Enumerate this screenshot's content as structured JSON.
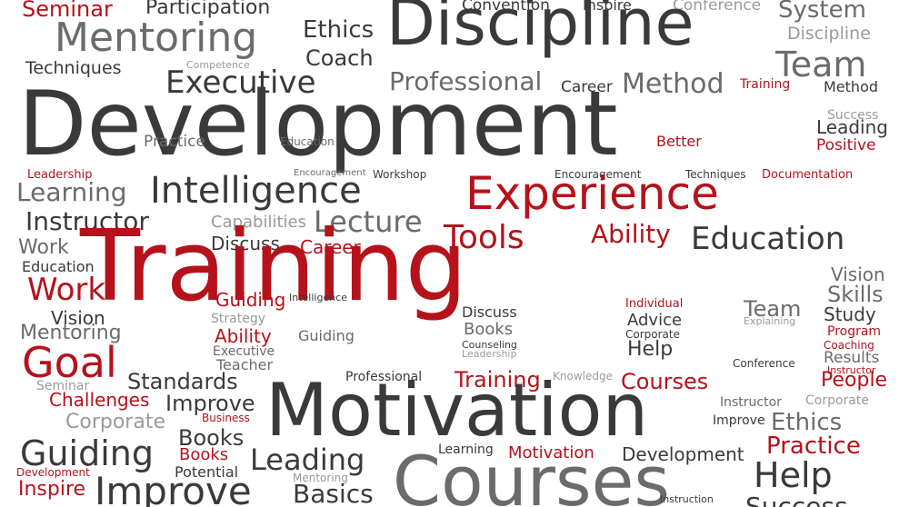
{
  "colors": {
    "red": "#b5121b",
    "dark": "#3a3a3a",
    "mid": "#6b6b6b",
    "light": "#9a9a9a"
  },
  "words": [
    {
      "text": "Seminar",
      "color": "red"
    },
    {
      "text": "Participation",
      "color": "dark"
    },
    {
      "text": "Convention",
      "color": "dark"
    },
    {
      "text": "Inspire",
      "color": "dark"
    },
    {
      "text": "Conference",
      "color": "light"
    },
    {
      "text": "System",
      "color": "mid"
    },
    {
      "text": "Discipline",
      "color": "dark"
    },
    {
      "text": "Mentoring",
      "color": "mid"
    },
    {
      "text": "Ethics",
      "color": "dark"
    },
    {
      "text": "Coach",
      "color": "dark"
    },
    {
      "text": "Discipline",
      "color": "light"
    },
    {
      "text": "Team",
      "color": "mid"
    },
    {
      "text": "Techniques",
      "color": "dark"
    },
    {
      "text": "Competence",
      "color": "light"
    },
    {
      "text": "Executive",
      "color": "dark"
    },
    {
      "text": "Professional",
      "color": "mid"
    },
    {
      "text": "Career",
      "color": "dark"
    },
    {
      "text": "Method",
      "color": "mid"
    },
    {
      "text": "Training",
      "color": "red"
    },
    {
      "text": "Method",
      "color": "dark"
    },
    {
      "text": "Development",
      "color": "dark"
    },
    {
      "text": "Success",
      "color": "light"
    },
    {
      "text": "Leading",
      "color": "dark"
    },
    {
      "text": "Practice",
      "color": "mid"
    },
    {
      "text": "Education",
      "color": "mid"
    },
    {
      "text": "Better",
      "color": "red"
    },
    {
      "text": "Positive",
      "color": "red"
    },
    {
      "text": "Leadership",
      "color": "red"
    },
    {
      "text": "Encouragement",
      "color": "mid"
    },
    {
      "text": "Workshop",
      "color": "dark"
    },
    {
      "text": "Encouragement",
      "color": "dark"
    },
    {
      "text": "Techniques",
      "color": "dark"
    },
    {
      "text": "Documentation",
      "color": "red"
    },
    {
      "text": "Learning",
      "color": "mid"
    },
    {
      "text": "Intelligence",
      "color": "dark"
    },
    {
      "text": "Experience",
      "color": "red"
    },
    {
      "text": "Instructor",
      "color": "dark"
    },
    {
      "text": "Capabilities",
      "color": "light"
    },
    {
      "text": "Lecture",
      "color": "mid"
    },
    {
      "text": "Tools",
      "color": "red"
    },
    {
      "text": "Ability",
      "color": "red"
    },
    {
      "text": "Education",
      "color": "dark"
    },
    {
      "text": "Work",
      "color": "mid"
    },
    {
      "text": "Discuss",
      "color": "dark"
    },
    {
      "text": "Career",
      "color": "red"
    },
    {
      "text": "Education",
      "color": "dark"
    },
    {
      "text": "Training",
      "color": "red"
    },
    {
      "text": "Vision",
      "color": "mid"
    },
    {
      "text": "Work",
      "color": "red"
    },
    {
      "text": "Skills",
      "color": "mid"
    },
    {
      "text": "Guiding",
      "color": "red"
    },
    {
      "text": "Intelligence",
      "color": "dark"
    },
    {
      "text": "Individual",
      "color": "red"
    },
    {
      "text": "Team",
      "color": "mid"
    },
    {
      "text": "Study",
      "color": "dark"
    },
    {
      "text": "Vision",
      "color": "dark"
    },
    {
      "text": "Strategy",
      "color": "light"
    },
    {
      "text": "Discuss",
      "color": "dark"
    },
    {
      "text": "Advice",
      "color": "dark"
    },
    {
      "text": "Explaining",
      "color": "light"
    },
    {
      "text": "Program",
      "color": "red"
    },
    {
      "text": "Mentoring",
      "color": "mid"
    },
    {
      "text": "Ability",
      "color": "red"
    },
    {
      "text": "Guiding",
      "color": "mid"
    },
    {
      "text": "Books",
      "color": "mid"
    },
    {
      "text": "Corporate",
      "color": "dark"
    },
    {
      "text": "Coaching",
      "color": "red"
    },
    {
      "text": "Goal",
      "color": "red"
    },
    {
      "text": "Executive",
      "color": "mid"
    },
    {
      "text": "Counseling",
      "color": "dark"
    },
    {
      "text": "Help",
      "color": "dark"
    },
    {
      "text": "Results",
      "color": "mid"
    },
    {
      "text": "Teacher",
      "color": "mid"
    },
    {
      "text": "Leadership",
      "color": "light"
    },
    {
      "text": "Conference",
      "color": "dark"
    },
    {
      "text": "Instructor",
      "color": "red"
    },
    {
      "text": "Standards",
      "color": "dark"
    },
    {
      "text": "Professional",
      "color": "dark"
    },
    {
      "text": "Knowledge",
      "color": "light"
    },
    {
      "text": "Seminar",
      "color": "light"
    },
    {
      "text": "Training",
      "color": "red"
    },
    {
      "text": "Courses",
      "color": "red"
    },
    {
      "text": "People",
      "color": "red"
    },
    {
      "text": "Challenges",
      "color": "red"
    },
    {
      "text": "Improve",
      "color": "dark"
    },
    {
      "text": "Motivation",
      "color": "dark"
    },
    {
      "text": "Instructor",
      "color": "mid"
    },
    {
      "text": "Corporate",
      "color": "light"
    },
    {
      "text": "Corporate",
      "color": "light"
    },
    {
      "text": "Business",
      "color": "red"
    },
    {
      "text": "Improve",
      "color": "dark"
    },
    {
      "text": "Ethics",
      "color": "mid"
    },
    {
      "text": "Books",
      "color": "dark"
    },
    {
      "text": "Guiding",
      "color": "dark"
    },
    {
      "text": "Practice",
      "color": "red"
    },
    {
      "text": "Books",
      "color": "red"
    },
    {
      "text": "Leading",
      "color": "dark"
    },
    {
      "text": "Learning",
      "color": "dark"
    },
    {
      "text": "Motivation",
      "color": "red"
    },
    {
      "text": "Development",
      "color": "dark"
    },
    {
      "text": "Potential",
      "color": "dark"
    },
    {
      "text": "Courses",
      "color": "mid"
    },
    {
      "text": "Help",
      "color": "dark"
    },
    {
      "text": "Development",
      "color": "red"
    },
    {
      "text": "Mentoring",
      "color": "light"
    },
    {
      "text": "Inspire",
      "color": "red"
    },
    {
      "text": "Improve",
      "color": "dark"
    },
    {
      "text": "Basics",
      "color": "dark"
    },
    {
      "text": "Instruction",
      "color": "dark"
    },
    {
      "text": "Success",
      "color": "dark"
    }
  ]
}
